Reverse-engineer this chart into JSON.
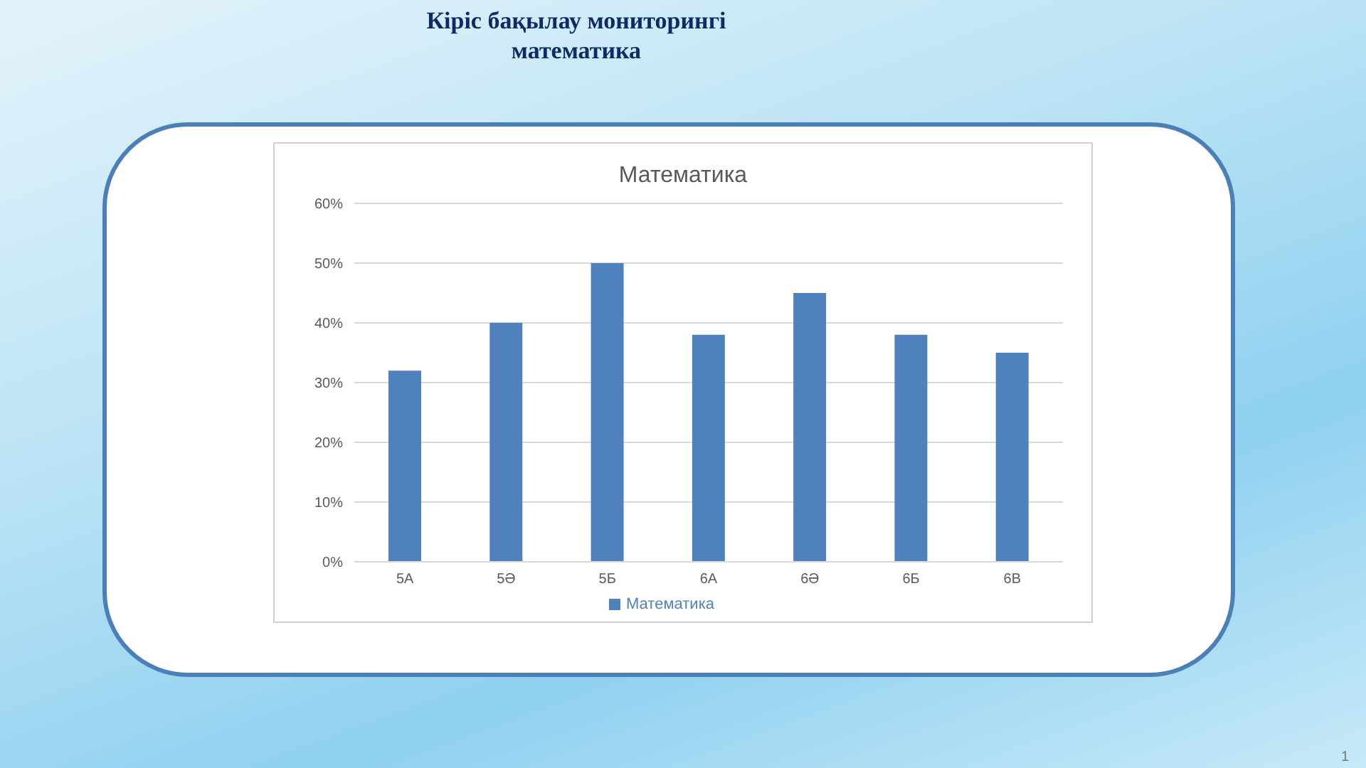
{
  "chart_data": {
    "type": "bar",
    "title": "Кіріс бақылау мониторингі математика",
    "subtitle": "Математика",
    "categories": [
      "5А",
      "5Ә",
      "5Б",
      "6А",
      "6Ә",
      "6Б",
      "6В"
    ],
    "series": [
      {
        "name": "Математика",
        "color": "#4f81bd",
        "values": [
          32,
          40,
          50,
          38,
          45,
          38,
          35
        ]
      }
    ],
    "ylim": [
      0,
      60
    ],
    "yticks": [
      {
        "value": 0,
        "label": "0%"
      },
      {
        "value": 10,
        "label": "10%"
      },
      {
        "value": 20,
        "label": "20%"
      },
      {
        "value": 30,
        "label": "30%"
      },
      {
        "value": 40,
        "label": "40%"
      },
      {
        "value": 50,
        "label": "50%"
      },
      {
        "value": 60,
        "label": "60%"
      }
    ],
    "grid": "y",
    "legend": "bottom",
    "annotations": [
      "1"
    ]
  }
}
